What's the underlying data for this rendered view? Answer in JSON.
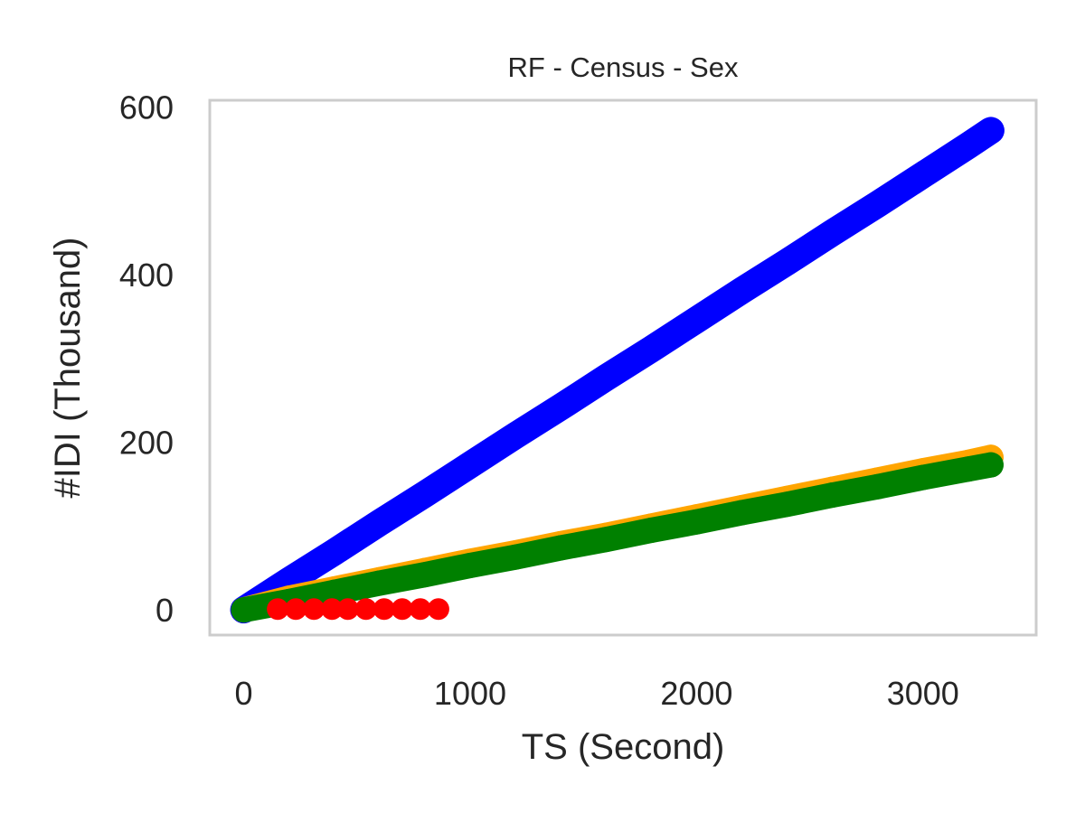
{
  "chart_data": {
    "type": "scatter",
    "title": "RF - Census - Sex",
    "xlabel": "TS (Second)",
    "ylabel": "#IDI (Thousand)",
    "xlim": [
      -150,
      3500
    ],
    "ylim": [
      -30,
      608
    ],
    "xticks": [
      0,
      1000,
      2000,
      3000
    ],
    "yticks": [
      0,
      200,
      400,
      600
    ],
    "grid": false,
    "series": [
      {
        "color": "#0000ff",
        "x": [
          0,
          200,
          400,
          600,
          800,
          1000,
          1200,
          1400,
          1600,
          1800,
          2000,
          2200,
          2400,
          2600,
          2800,
          3000,
          3200,
          3300
        ],
        "y": [
          0,
          35,
          69,
          104,
          138,
          173,
          208,
          242,
          277,
          311,
          346,
          381,
          415,
          450,
          484,
          519,
          554,
          572
        ]
      },
      {
        "color": "#ffa500",
        "x": [
          0,
          200,
          400,
          600,
          800,
          1000,
          1200,
          1400,
          1600,
          1800,
          2000,
          2200,
          2400,
          2600,
          2800,
          3000,
          3200,
          3300
        ],
        "y": [
          0,
          14,
          25,
          36,
          47,
          58,
          68,
          79,
          89,
          100,
          111,
          122,
          133,
          144,
          155,
          166,
          176,
          182
        ]
      },
      {
        "color": "#008000",
        "x": [
          0,
          200,
          400,
          600,
          800,
          1000,
          1200,
          1400,
          1600,
          1800,
          2000,
          2200,
          2400,
          2600,
          2800,
          3000,
          3200,
          3300
        ],
        "y": [
          0,
          10,
          21,
          32,
          42,
          53,
          63,
          74,
          84,
          95,
          105,
          116,
          126,
          137,
          147,
          158,
          168,
          173
        ]
      },
      {
        "color": "#ff0000",
        "x": [
          150,
          230,
          310,
          390,
          460,
          540,
          620,
          700,
          780,
          860
        ],
        "y": [
          1,
          1,
          1,
          1,
          1,
          1,
          1,
          1,
          1,
          1
        ]
      }
    ]
  }
}
